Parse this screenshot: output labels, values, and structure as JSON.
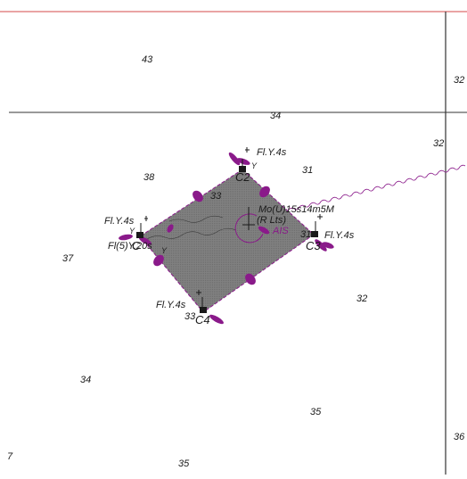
{
  "colors": {
    "magenta": "#8a1a8a",
    "red_line": "#d44a4a",
    "area_fill": "#7f7f7f",
    "ink": "#1a1a1a"
  },
  "soundings": [
    "43",
    "32",
    "34",
    "32",
    "31",
    "38",
    "33",
    "31",
    "37",
    "32",
    "33",
    "34",
    "35",
    "36",
    "7",
    "35"
  ],
  "buoys": [
    {
      "id": "C2",
      "light": "Fl.Y.4s",
      "topmark": "Y"
    },
    {
      "id": "C",
      "light": "Fl.Y.4s",
      "topmark": "Y",
      "extra": "Fl(5)Y.20s"
    },
    {
      "id": "C3",
      "light": "Fl.Y.4s"
    },
    {
      "id": "C4",
      "light": "Fl.Y.4s"
    }
  ],
  "center_light": {
    "line1": "Mo(U)15s14m5M",
    "line2": "(R Lts)",
    "ais": "AIS",
    "mark": "Y"
  }
}
